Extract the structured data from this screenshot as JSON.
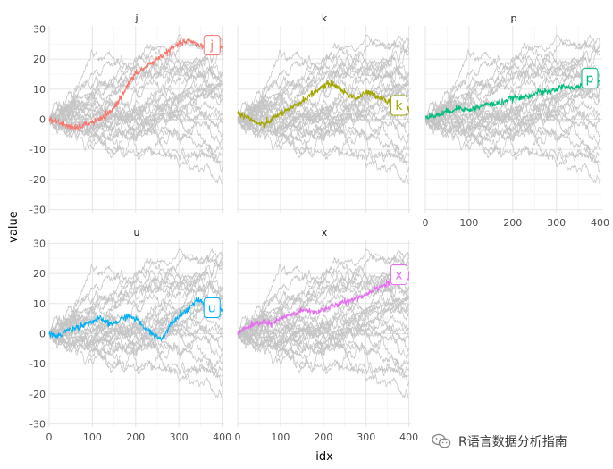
{
  "chart_data": {
    "type": "line",
    "layout": "facet_wrap",
    "facet_order": [
      "j",
      "k",
      "p",
      "u",
      "x"
    ],
    "xlabel": "idx",
    "ylabel": "value",
    "xlim": [
      0,
      405
    ],
    "ylim": [
      -31,
      31
    ],
    "x_ticks": [
      0,
      100,
      200,
      300,
      400
    ],
    "y_ticks": [
      -30,
      -20,
      -10,
      0,
      10,
      20,
      30
    ],
    "grid": true,
    "legend": "none",
    "background_series_color": "#c4c4c4",
    "background_series_count": 26,
    "series": [
      {
        "name": "j",
        "color": "#f8766d",
        "x": [
          0,
          20,
          40,
          60,
          80,
          100,
          120,
          140,
          160,
          180,
          200,
          220,
          240,
          260,
          280,
          300,
          320,
          340,
          360,
          380,
          400
        ],
        "values": [
          0,
          -1,
          -2,
          -3,
          -2,
          -1,
          0,
          2,
          6,
          11,
          15,
          17,
          19,
          21,
          23,
          25,
          26,
          25,
          24,
          25,
          24
        ]
      },
      {
        "name": "k",
        "color": "#a3a500",
        "x": [
          0,
          20,
          40,
          60,
          80,
          100,
          120,
          140,
          160,
          180,
          200,
          220,
          240,
          260,
          280,
          300,
          320,
          340,
          360,
          380,
          400
        ],
        "values": [
          2,
          1,
          -1,
          -2,
          0,
          2,
          3,
          5,
          7,
          9,
          11,
          12,
          10,
          8,
          7,
          9,
          8,
          7,
          5,
          4,
          4
        ]
      },
      {
        "name": "p",
        "color": "#00bf7d",
        "x": [
          0,
          20,
          40,
          60,
          80,
          100,
          120,
          140,
          160,
          180,
          200,
          220,
          240,
          260,
          280,
          300,
          320,
          340,
          360,
          380,
          400
        ],
        "values": [
          1,
          1,
          2,
          3,
          4,
          3,
          4,
          5,
          5,
          6,
          7,
          7,
          8,
          9,
          9,
          10,
          11,
          10,
          12,
          13,
          13
        ]
      },
      {
        "name": "u",
        "color": "#00b0f6",
        "x": [
          0,
          20,
          40,
          60,
          80,
          100,
          120,
          140,
          160,
          180,
          200,
          220,
          240,
          260,
          280,
          300,
          320,
          340,
          360,
          380,
          400
        ],
        "values": [
          0,
          -1,
          1,
          2,
          3,
          4,
          5,
          3,
          4,
          6,
          5,
          2,
          0,
          -2,
          3,
          6,
          8,
          11,
          10,
          9,
          8
        ]
      },
      {
        "name": "x",
        "color": "#e76bf3",
        "x": [
          0,
          20,
          40,
          60,
          80,
          100,
          120,
          140,
          160,
          180,
          200,
          220,
          240,
          260,
          280,
          300,
          320,
          340,
          360,
          380,
          400
        ],
        "values": [
          0,
          2,
          3,
          4,
          3,
          5,
          6,
          7,
          8,
          7,
          8,
          9,
          10,
          11,
          12,
          13,
          15,
          16,
          17,
          19,
          19
        ]
      }
    ]
  },
  "watermark": {
    "text": "R语言数据分析指南",
    "icon": "wechat-icon"
  }
}
